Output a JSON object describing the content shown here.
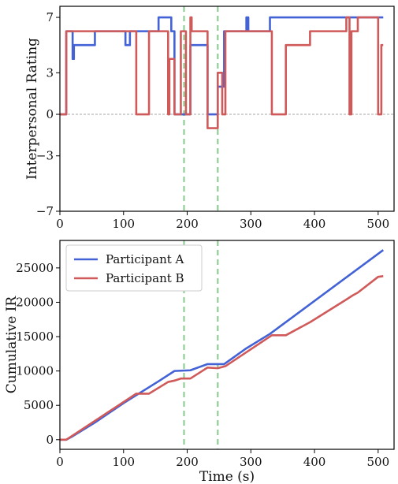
{
  "chart_data": [
    {
      "type": "line",
      "ylabel": "Interpersonal Rating",
      "xlabel": "",
      "xlim": [
        0,
        525
      ],
      "ylim": [
        -7,
        7.8
      ],
      "xticks": [
        0,
        100,
        200,
        300,
        400,
        500
      ],
      "yticks": [
        -7,
        -3,
        0,
        3,
        7
      ],
      "zero_line": {
        "y": 0,
        "style": "dashed",
        "color": "#888888"
      },
      "vlines": [
        {
          "x": 195,
          "color": "#8fcf95"
        },
        {
          "x": 248,
          "color": "#8fcf95"
        }
      ],
      "grid": false,
      "series": [
        {
          "name": "Participant A",
          "color": "#4262d6",
          "points": [
            [
              0,
              0
            ],
            [
              10,
              0
            ],
            [
              10,
              6
            ],
            [
              20,
              6
            ],
            [
              20,
              4
            ],
            [
              22,
              4
            ],
            [
              22,
              5
            ],
            [
              55,
              5
            ],
            [
              55,
              6
            ],
            [
              103,
              6
            ],
            [
              103,
              5
            ],
            [
              110,
              5
            ],
            [
              110,
              6
            ],
            [
              155,
              6
            ],
            [
              155,
              7
            ],
            [
              175,
              7
            ],
            [
              175,
              6
            ],
            [
              180,
              6
            ],
            [
              180,
              0
            ],
            [
              205,
              0
            ],
            [
              205,
              5
            ],
            [
              232,
              5
            ],
            [
              232,
              0
            ],
            [
              248,
              0
            ],
            [
              248,
              2
            ],
            [
              258,
              2
            ],
            [
              258,
              6
            ],
            [
              293,
              6
            ],
            [
              293,
              7
            ],
            [
              296,
              7
            ],
            [
              296,
              6
            ],
            [
              330,
              6
            ],
            [
              330,
              7
            ],
            [
              508,
              7
            ]
          ]
        },
        {
          "name": "Participant B",
          "color": "#d05a5a",
          "points": [
            [
              0,
              0
            ],
            [
              10,
              0
            ],
            [
              10,
              6
            ],
            [
              120,
              6
            ],
            [
              120,
              0
            ],
            [
              140,
              0
            ],
            [
              140,
              6
            ],
            [
              170,
              6
            ],
            [
              170,
              0
            ],
            [
              172,
              0
            ],
            [
              172,
              4
            ],
            [
              180,
              4
            ],
            [
              180,
              0
            ],
            [
              190,
              0
            ],
            [
              190,
              6
            ],
            [
              198,
              6
            ],
            [
              198,
              0
            ],
            [
              205,
              0
            ],
            [
              205,
              7
            ],
            [
              207,
              7
            ],
            [
              207,
              6
            ],
            [
              232,
              6
            ],
            [
              232,
              -1
            ],
            [
              248,
              -1
            ],
            [
              248,
              3
            ],
            [
              255,
              3
            ],
            [
              255,
              0
            ],
            [
              260,
              0
            ],
            [
              260,
              6
            ],
            [
              333,
              6
            ],
            [
              333,
              0
            ],
            [
              355,
              0
            ],
            [
              355,
              5
            ],
            [
              393,
              5
            ],
            [
              393,
              6
            ],
            [
              450,
              6
            ],
            [
              450,
              7
            ],
            [
              455,
              7
            ],
            [
              455,
              0
            ],
            [
              458,
              0
            ],
            [
              458,
              6
            ],
            [
              468,
              6
            ],
            [
              468,
              7
            ],
            [
              500,
              7
            ],
            [
              500,
              0
            ],
            [
              505,
              0
            ],
            [
              505,
              5
            ],
            [
              508,
              5
            ]
          ]
        }
      ]
    },
    {
      "type": "line",
      "ylabel": "Cumulative IR",
      "xlabel": "Time (s)",
      "xlim": [
        0,
        525
      ],
      "ylim": [
        -1400,
        29000
      ],
      "xticks": [
        0,
        100,
        200,
        300,
        400,
        500
      ],
      "yticks": [
        0,
        5000,
        10000,
        15000,
        20000,
        25000
      ],
      "vlines": [
        {
          "x": 195,
          "color": "#8fcf95"
        },
        {
          "x": 248,
          "color": "#8fcf95"
        }
      ],
      "legend": {
        "position": "top-left",
        "entries": [
          "Participant A",
          "Participant B"
        ]
      },
      "grid": false,
      "series": [
        {
          "name": "Participant A",
          "color": "#4262d6",
          "points": [
            [
              0,
              0
            ],
            [
              10,
              0
            ],
            [
              20,
              500
            ],
            [
              55,
              2500
            ],
            [
              103,
              5500
            ],
            [
              155,
              8500
            ],
            [
              180,
              10000
            ],
            [
              205,
              10100
            ],
            [
              232,
              11000
            ],
            [
              258,
              11000
            ],
            [
              293,
              13300
            ],
            [
              330,
              15400
            ],
            [
              508,
              27600
            ]
          ]
        },
        {
          "name": "Participant B",
          "color": "#d05a5a",
          "points": [
            [
              0,
              0
            ],
            [
              10,
              0
            ],
            [
              120,
              6700
            ],
            [
              140,
              6700
            ],
            [
              170,
              8400
            ],
            [
              180,
              8600
            ],
            [
              190,
              8900
            ],
            [
              205,
              8900
            ],
            [
              232,
              10500
            ],
            [
              248,
              10400
            ],
            [
              260,
              10700
            ],
            [
              333,
              15200
            ],
            [
              355,
              15200
            ],
            [
              393,
              17100
            ],
            [
              450,
              20400
            ],
            [
              460,
              21000
            ],
            [
              468,
              21400
            ],
            [
              500,
              23700
            ],
            [
              508,
              23800
            ]
          ]
        }
      ]
    }
  ]
}
